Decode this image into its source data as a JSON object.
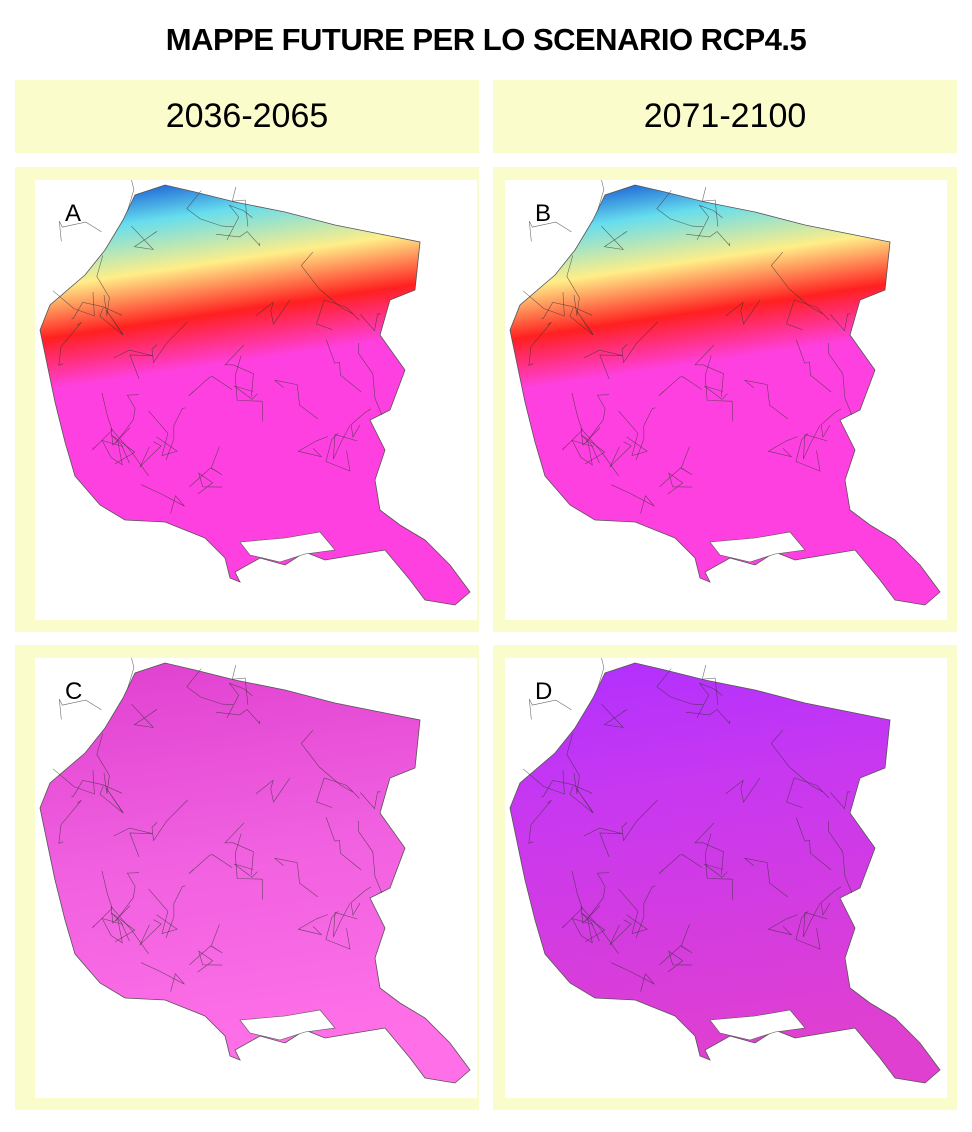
{
  "title": "MAPPE FUTURE PER LO SCENARIO RCP4.5",
  "columns": [
    {
      "label": "2036-2065"
    },
    {
      "label": "2071-2100"
    }
  ],
  "maps": [
    {
      "label": "A",
      "period": "2036-2065",
      "style": "elevation-gradient"
    },
    {
      "label": "B",
      "period": "2071-2100",
      "style": "elevation-gradient"
    },
    {
      "label": "C",
      "period": "2036-2065",
      "style": "magenta"
    },
    {
      "label": "D",
      "period": "2071-2100",
      "style": "violet-magenta"
    }
  ],
  "colors": {
    "panel_bg": "#fafccc",
    "blue": "#0033cc",
    "cyan": "#66ddee",
    "yellow": "#ffee88",
    "red": "#ff2020",
    "magenta": "#ff40e0",
    "violet": "#b030ff"
  }
}
